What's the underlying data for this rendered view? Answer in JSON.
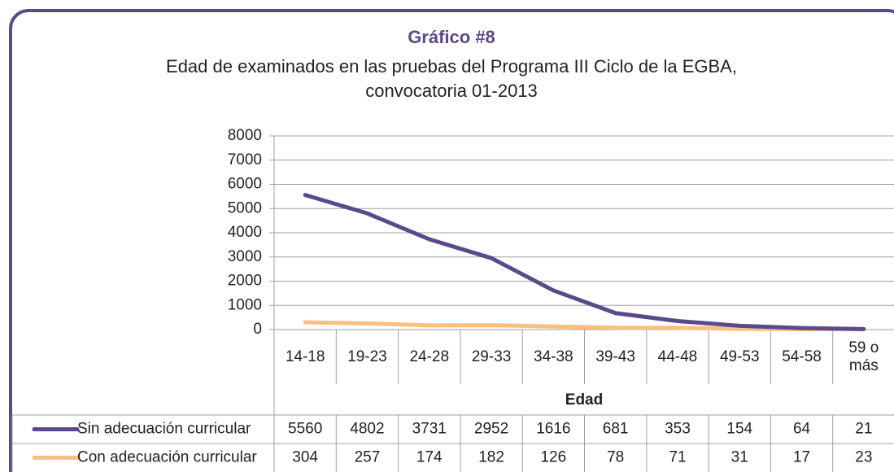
{
  "chart_data": {
    "type": "line",
    "title": "Gráfico #8",
    "subtitle": [
      "Edad de examinados en las pruebas del Programa III Ciclo de la EGBA,",
      "convocatoria 01-2013"
    ],
    "x_label": "Edad",
    "categories": [
      "14-18",
      "19-23",
      "24-28",
      "29-33",
      "34-38",
      "39-43",
      "44-48",
      "49-53",
      "54-58",
      "59 o más"
    ],
    "series": [
      {
        "name": "Sin adecuación curricular",
        "color": "#5b4a8b",
        "values": [
          5560,
          4802,
          3731,
          2952,
          1616,
          681,
          353,
          154,
          64,
          21
        ]
      },
      {
        "name": "Con adecuación curricular",
        "color": "#f9bf80",
        "values": [
          304,
          257,
          174,
          182,
          126,
          78,
          71,
          31,
          17,
          23
        ]
      }
    ],
    "ylim": [
      0,
      8000
    ],
    "yticks": [
      0,
      1000,
      2000,
      3000,
      4000,
      5000,
      6000,
      7000,
      8000
    ],
    "grid": true
  }
}
